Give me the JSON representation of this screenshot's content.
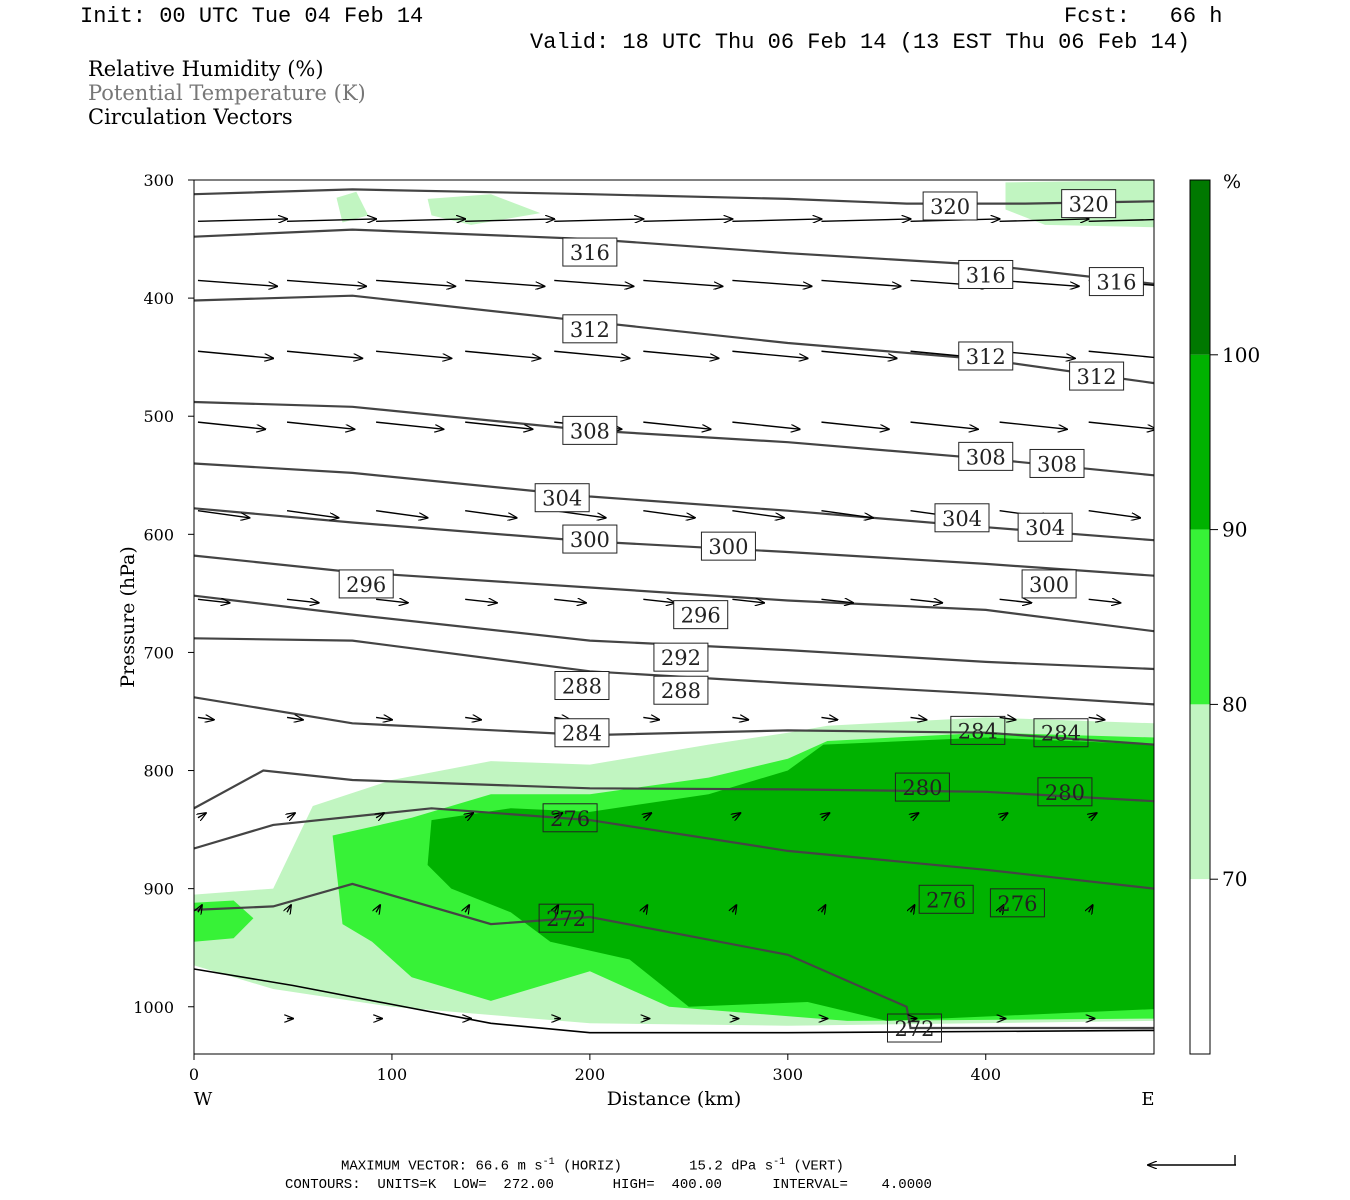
{
  "header": {
    "init": "Init: 00 UTC Tue 04 Feb 14",
    "fcst": "Fcst:   66 h",
    "valid": "Valid: 18 UTC Thu 06 Feb 14 (13 EST Thu 06 Feb 14)"
  },
  "legend": {
    "rh": "Relative Humidity (%)",
    "theta": "Potential Temperature (K)",
    "vectors": "Circulation Vectors"
  },
  "footer": {
    "max_vector_label": "MAXIMUM VECTOR:",
    "horiz": "66.6 m s",
    "horiz_unit": "(HORIZ)",
    "vert": "15.2 dPa s",
    "vert_unit": "(VERT)",
    "exp": "-1",
    "contours": "CONTOURS:  UNITS=K  LOW=  272.00       HIGH=  400.00      INTERVAL=    4.0000"
  },
  "colors": {
    "rh_70_80": "#c1f5c1",
    "rh_80_90": "#37f237",
    "rh_90_100": "#00b200",
    "rh_100": "#007800",
    "isentrope": "#444444"
  },
  "chart_data": {
    "type": "contour",
    "xlabel": "Distance (km)",
    "ylabel": "Pressure (hPa)",
    "x_ticks": [
      0,
      100,
      200,
      300,
      400
    ],
    "y_ticks": [
      300,
      400,
      500,
      600,
      700,
      800,
      900,
      1000
    ],
    "xlim": [
      0,
      485
    ],
    "ylim": [
      1040,
      300
    ],
    "x_end_labels": {
      "left": "W",
      "right": "E"
    },
    "colorbar": {
      "unit": "%",
      "levels": [
        70,
        80,
        90,
        100
      ],
      "labels": [
        "100",
        "90",
        "80",
        "70"
      ]
    },
    "isentropes": [
      {
        "theta": 320,
        "points": [
          [
            0,
            312
          ],
          [
            80,
            308
          ],
          [
            200,
            312
          ],
          [
            300,
            316
          ],
          [
            360,
            320
          ],
          [
            420,
            320
          ],
          [
            485,
            318
          ]
        ]
      },
      {
        "theta": 316,
        "points": [
          [
            0,
            348
          ],
          [
            80,
            342
          ],
          [
            200,
            350
          ],
          [
            300,
            362
          ],
          [
            400,
            372
          ],
          [
            485,
            388
          ]
        ]
      },
      {
        "theta": 312,
        "points": [
          [
            0,
            402
          ],
          [
            80,
            398
          ],
          [
            200,
            420
          ],
          [
            300,
            438
          ],
          [
            400,
            452
          ],
          [
            485,
            472
          ]
        ]
      },
      {
        "theta": 308,
        "points": [
          [
            0,
            488
          ],
          [
            80,
            492
          ],
          [
            200,
            512
          ],
          [
            300,
            522
          ],
          [
            400,
            536
          ],
          [
            485,
            550
          ]
        ]
      },
      {
        "theta": 304,
        "points": [
          [
            0,
            540
          ],
          [
            80,
            548
          ],
          [
            200,
            568
          ],
          [
            300,
            580
          ],
          [
            400,
            594
          ],
          [
            485,
            605
          ]
        ]
      },
      {
        "theta": 300,
        "points": [
          [
            0,
            578
          ],
          [
            80,
            590
          ],
          [
            200,
            606
          ],
          [
            300,
            615
          ],
          [
            400,
            625
          ],
          [
            485,
            635
          ]
        ]
      },
      {
        "theta": 296,
        "points": [
          [
            0,
            618
          ],
          [
            80,
            632
          ],
          [
            200,
            645
          ],
          [
            300,
            656
          ],
          [
            400,
            664
          ],
          [
            485,
            682
          ]
        ]
      },
      {
        "theta": 292,
        "points": [
          [
            0,
            652
          ],
          [
            80,
            668
          ],
          [
            200,
            690
          ],
          [
            300,
            698
          ],
          [
            400,
            708
          ],
          [
            485,
            714
          ]
        ]
      },
      {
        "theta": 288,
        "points": [
          [
            0,
            688
          ],
          [
            80,
            690
          ],
          [
            200,
            716
          ],
          [
            300,
            726
          ],
          [
            400,
            735
          ],
          [
            485,
            744
          ]
        ]
      },
      {
        "theta": 284,
        "points": [
          [
            0,
            738
          ],
          [
            80,
            760
          ],
          [
            200,
            770
          ],
          [
            300,
            766
          ],
          [
            400,
            768
          ],
          [
            485,
            778
          ]
        ]
      },
      {
        "theta": 280,
        "points": [
          [
            0,
            832
          ],
          [
            35,
            800
          ],
          [
            80,
            808
          ],
          [
            200,
            815
          ],
          [
            300,
            816
          ],
          [
            400,
            818
          ],
          [
            485,
            826
          ]
        ]
      },
      {
        "theta": 276,
        "points": [
          [
            0,
            866
          ],
          [
            40,
            846
          ],
          [
            120,
            832
          ],
          [
            200,
            842
          ],
          [
            300,
            868
          ],
          [
            400,
            884
          ],
          [
            485,
            900
          ]
        ]
      },
      {
        "theta": 272,
        "points": [
          [
            0,
            918
          ],
          [
            40,
            915
          ],
          [
            80,
            896
          ],
          [
            150,
            930
          ],
          [
            200,
            924
          ],
          [
            300,
            956
          ],
          [
            360,
            1000
          ],
          [
            362,
            1018
          ],
          [
            485,
            1018
          ]
        ]
      },
      {
        "theta": null,
        "points": [
          [
            0,
            968
          ],
          [
            50,
            982
          ],
          [
            100,
            998
          ],
          [
            150,
            1014
          ],
          [
            200,
            1022
          ],
          [
            300,
            1022
          ],
          [
            485,
            1020
          ]
        ]
      }
    ],
    "contour_labels": [
      {
        "text": "320",
        "x": 382,
        "p": 322
      },
      {
        "text": "320",
        "x": 452,
        "p": 320
      },
      {
        "text": "316",
        "x": 200,
        "p": 361
      },
      {
        "text": "316",
        "x": 400,
        "p": 380
      },
      {
        "text": "316",
        "x": 466,
        "p": 386
      },
      {
        "text": "312",
        "x": 200,
        "p": 426
      },
      {
        "text": "312",
        "x": 400,
        "p": 449
      },
      {
        "text": "312",
        "x": 456,
        "p": 466
      },
      {
        "text": "308",
        "x": 200,
        "p": 512
      },
      {
        "text": "308",
        "x": 400,
        "p": 534
      },
      {
        "text": "308",
        "x": 436,
        "p": 540
      },
      {
        "text": "304",
        "x": 186,
        "p": 569
      },
      {
        "text": "304",
        "x": 388,
        "p": 586
      },
      {
        "text": "304",
        "x": 430,
        "p": 594
      },
      {
        "text": "300",
        "x": 200,
        "p": 604
      },
      {
        "text": "300",
        "x": 270,
        "p": 610
      },
      {
        "text": "300",
        "x": 432,
        "p": 642
      },
      {
        "text": "296",
        "x": 87,
        "p": 642
      },
      {
        "text": "296",
        "x": 256,
        "p": 668
      },
      {
        "text": "292",
        "x": 246,
        "p": 704
      },
      {
        "text": "288",
        "x": 196,
        "p": 728
      },
      {
        "text": "288",
        "x": 246,
        "p": 732
      },
      {
        "text": "284",
        "x": 196,
        "p": 768
      },
      {
        "text": "284",
        "x": 396,
        "p": 766
      },
      {
        "text": "284",
        "x": 438,
        "p": 768
      },
      {
        "text": "280",
        "x": 368,
        "p": 814
      },
      {
        "text": "280",
        "x": 440,
        "p": 818
      },
      {
        "text": "276",
        "x": 190,
        "p": 840
      },
      {
        "text": "276",
        "x": 380,
        "p": 909
      },
      {
        "text": "276",
        "x": 416,
        "p": 912
      },
      {
        "text": "272",
        "x": 188,
        "p": 925
      },
      {
        "text": "272",
        "x": 364,
        "p": 1018
      }
    ],
    "rh_regions": [
      {
        "level": "70-80",
        "points": [
          [
            0,
            905
          ],
          [
            40,
            900
          ],
          [
            60,
            830
          ],
          [
            100,
            808
          ],
          [
            150,
            792
          ],
          [
            200,
            795
          ],
          [
            260,
            778
          ],
          [
            300,
            768
          ],
          [
            320,
            762
          ],
          [
            400,
            755
          ],
          [
            485,
            760
          ],
          [
            485,
            1012
          ],
          [
            300,
            1016
          ],
          [
            200,
            1014
          ],
          [
            100,
            1000
          ],
          [
            40,
            985
          ],
          [
            0,
            965
          ]
        ]
      },
      {
        "level": "70-80",
        "points": [
          [
            72,
            315
          ],
          [
            82,
            310
          ],
          [
            88,
            330
          ],
          [
            75,
            336
          ]
        ]
      },
      {
        "level": "70-80",
        "points": [
          [
            118,
            316
          ],
          [
            150,
            312
          ],
          [
            175,
            328
          ],
          [
            140,
            338
          ],
          [
            120,
            330
          ]
        ]
      },
      {
        "level": "70-80",
        "points": [
          [
            410,
            302
          ],
          [
            485,
            300
          ],
          [
            485,
            340
          ],
          [
            430,
            338
          ],
          [
            410,
            325
          ]
        ]
      },
      {
        "level": "80-90",
        "points": [
          [
            0,
            912
          ],
          [
            20,
            910
          ],
          [
            30,
            925
          ],
          [
            20,
            942
          ],
          [
            0,
            945
          ]
        ]
      },
      {
        "level": "80-90",
        "points": [
          [
            70,
            855
          ],
          [
            110,
            840
          ],
          [
            150,
            820
          ],
          [
            200,
            820
          ],
          [
            260,
            806
          ],
          [
            300,
            790
          ],
          [
            320,
            775
          ],
          [
            400,
            768
          ],
          [
            485,
            772
          ],
          [
            485,
            1010
          ],
          [
            330,
            1012
          ],
          [
            240,
            1000
          ],
          [
            200,
            970
          ],
          [
            150,
            995
          ],
          [
            110,
            975
          ],
          [
            90,
            945
          ],
          [
            75,
            930
          ]
        ]
      },
      {
        "level": "90-100",
        "points": [
          [
            120,
            842
          ],
          [
            160,
            832
          ],
          [
            200,
            835
          ],
          [
            260,
            820
          ],
          [
            300,
            800
          ],
          [
            318,
            778
          ],
          [
            400,
            772
          ],
          [
            485,
            778
          ],
          [
            485,
            1002
          ],
          [
            350,
            1012
          ],
          [
            310,
            996
          ],
          [
            250,
            1000
          ],
          [
            220,
            960
          ],
          [
            180,
            945
          ],
          [
            160,
            920
          ],
          [
            130,
            900
          ],
          [
            118,
            880
          ]
        ]
      }
    ],
    "vectors": [
      {
        "p": 335,
        "x": [
          0,
          45,
          90,
          135,
          180,
          225,
          270,
          315,
          360,
          405,
          450
        ],
        "dx": 45,
        "dp": -2
      },
      {
        "p": 385,
        "x": [
          0,
          45,
          90,
          135,
          180,
          225,
          270,
          315,
          360,
          405,
          450
        ],
        "dx": 40,
        "dp": 5
      },
      {
        "p": 445,
        "x": [
          0,
          45,
          90,
          135,
          180,
          225,
          270,
          315,
          360,
          405,
          450
        ],
        "dx": 38,
        "dp": 6
      },
      {
        "p": 505,
        "x": [
          0,
          45,
          90,
          135,
          180,
          225,
          270,
          315,
          360,
          405,
          450
        ],
        "dx": 34,
        "dp": 6
      },
      {
        "p": 580,
        "x": [
          0,
          45,
          90,
          135,
          180,
          225,
          270,
          315,
          360,
          405,
          450
        ],
        "dx": 26,
        "dp": 6
      },
      {
        "p": 655,
        "x": [
          0,
          45,
          90,
          135,
          180,
          225,
          270,
          315,
          360,
          405,
          450
        ],
        "dx": 16,
        "dp": 3
      },
      {
        "p": 755,
        "x": [
          0,
          45,
          90,
          135,
          180,
          225,
          270,
          315,
          360,
          405,
          450
        ],
        "dx": 8,
        "dp": 2
      },
      {
        "p": 840,
        "x": [
          0,
          45,
          90,
          135,
          180,
          225,
          270,
          315,
          360,
          405,
          450
        ],
        "dx": 4,
        "dp": -4
      },
      {
        "p": 920,
        "x": [
          0,
          45,
          90,
          135,
          180,
          225,
          270,
          315,
          360,
          405,
          450
        ],
        "dx": 2,
        "dp": -6
      },
      {
        "p": 1010,
        "x": [
          45,
          90,
          135,
          180,
          225,
          270,
          315,
          360,
          405,
          450
        ],
        "dx": 3,
        "dp": 0
      }
    ]
  }
}
